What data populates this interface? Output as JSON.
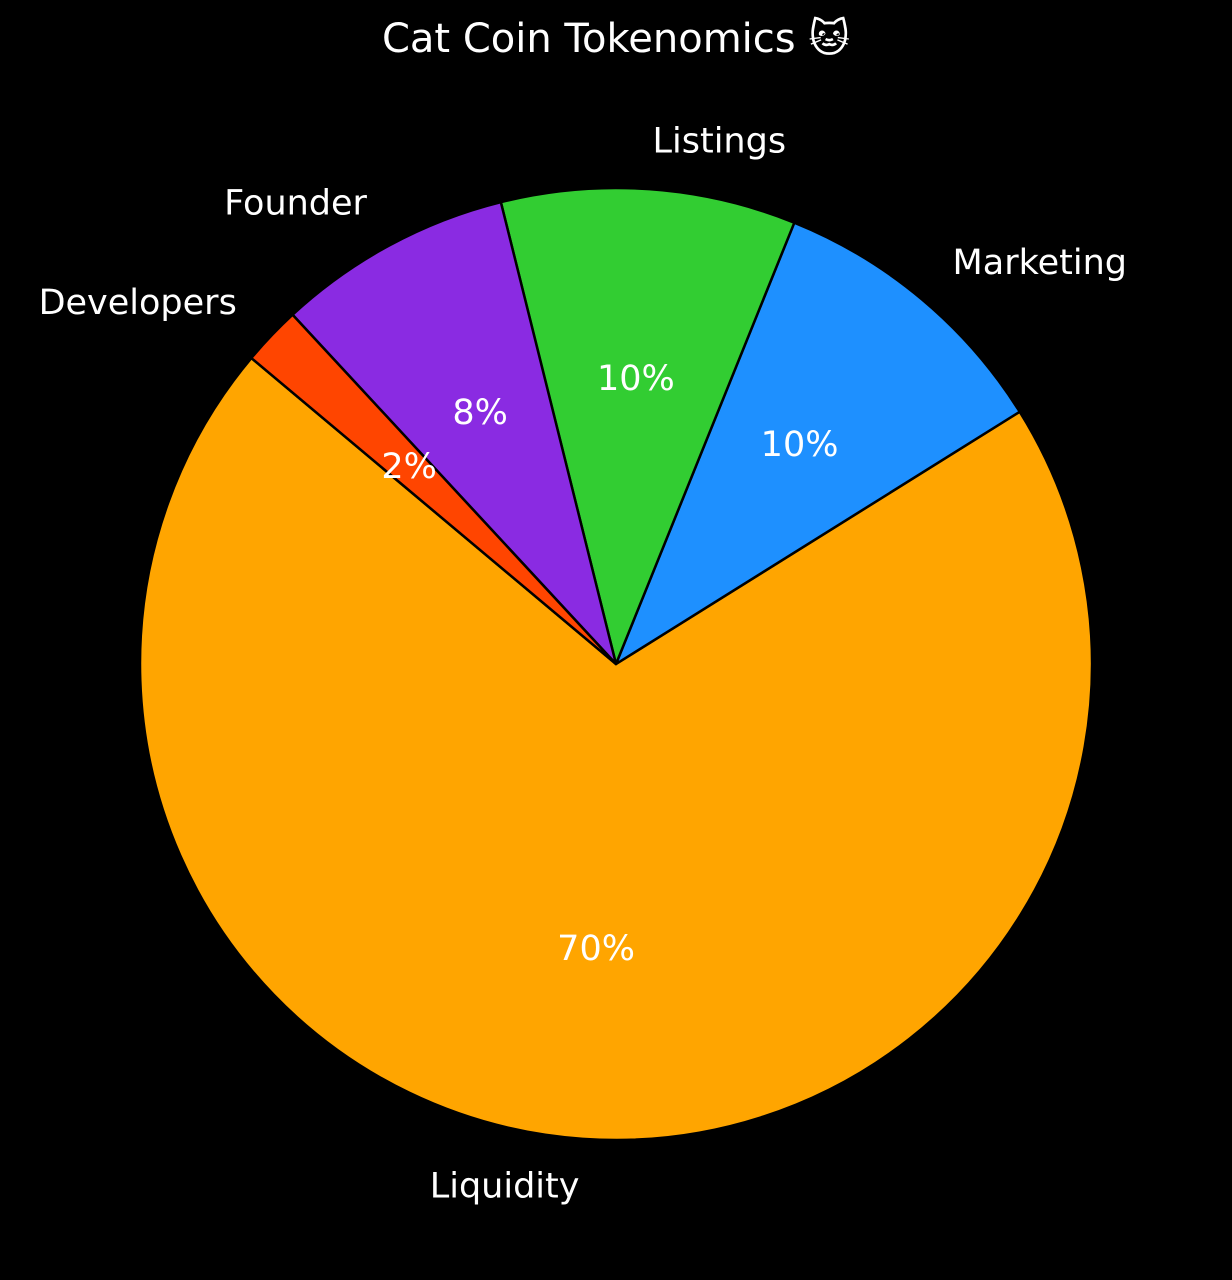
{
  "chart_data": {
    "type": "pie",
    "title": "Cat Coin Tokenomics 🐱",
    "categories": [
      "Liquidity",
      "Marketing",
      "Listings",
      "Founder",
      "Developers"
    ],
    "values": [
      70,
      10,
      10,
      8,
      2
    ],
    "value_labels": [
      "70%",
      "10%",
      "10%",
      "8%",
      "2%"
    ],
    "colors": [
      "#FFA500",
      "#1E90FF",
      "#32CD32",
      "#8A2BE2",
      "#FF4500"
    ],
    "edge_color": "#000000",
    "start_angle_deg": 140,
    "direction": "counterclockwise",
    "background": "#000000",
    "text_color": "#ffffff",
    "legend": "none"
  }
}
